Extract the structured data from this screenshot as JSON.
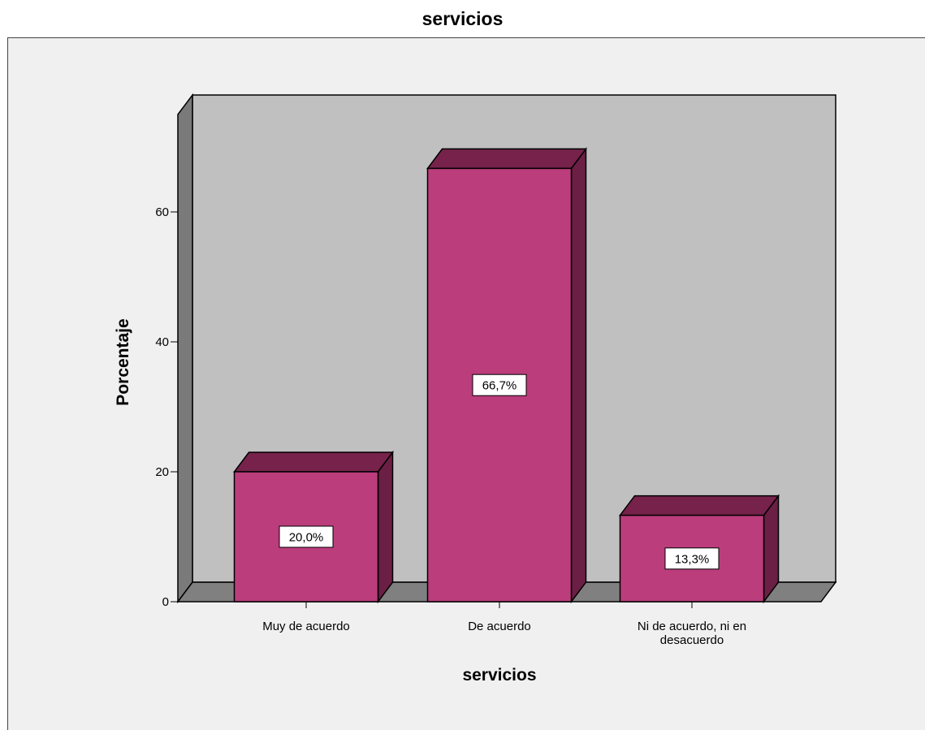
{
  "chart_data": {
    "type": "bar",
    "title": "servicios",
    "xlabel": "servicios",
    "ylabel": "Porcentaje",
    "categories": [
      "Muy de acuerdo",
      "De acuerdo",
      "Ni de acuerdo, ni en desacuerdo"
    ],
    "category_lines": [
      [
        "Muy de acuerdo"
      ],
      [
        "De acuerdo"
      ],
      [
        "Ni de acuerdo, ni en",
        "desacuerdo"
      ]
    ],
    "values": [
      20.0,
      66.7,
      13.3
    ],
    "data_labels": [
      "20,0%",
      "66,7%",
      "13,3%"
    ],
    "yticks": [
      0,
      20,
      40,
      60
    ],
    "ylim": [
      0,
      75
    ],
    "grid": false,
    "three_d": true,
    "colors": {
      "bar_front": "#bb3d7c",
      "bar_top": "#76224a",
      "bar_side": "#6b1f44",
      "wall": "#c0c0c0",
      "floor": "#808080",
      "side_wall": "#7a7a7a",
      "panel": "#f0f0f0"
    }
  }
}
